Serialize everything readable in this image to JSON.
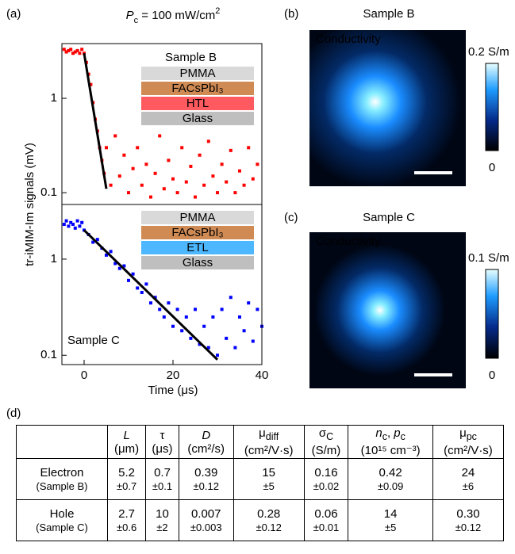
{
  "chart_data": [
    {
      "type": "scatter",
      "panel_label": "(a)",
      "title": [
        {
          "text": "P",
          "style": "italic"
        },
        {
          "text": "c",
          "style": "sub"
        },
        {
          "text": " = 100 mW/cm"
        },
        {
          "text": "2",
          "style": "sup"
        }
      ],
      "ylabel": "tr-iMIM-Im signals (mV)",
      "yscale": "log",
      "xlim": [
        -5,
        40
      ],
      "ylim": [
        0.075,
        3.8
      ],
      "yticks": [
        0.1,
        1
      ],
      "series": [
        {
          "color": "#ff0000",
          "mode": "markers",
          "x": [
            -4.5,
            -4,
            -3.5,
            -3,
            -2.5,
            -2,
            -1.5,
            -1,
            -0.5,
            0,
            0.5,
            1,
            1.5,
            2,
            2.5,
            3,
            3.5,
            4,
            4.5,
            5,
            6,
            7,
            8,
            9,
            10,
            11,
            12,
            13,
            14,
            15,
            16,
            17,
            18,
            19,
            20,
            21,
            22,
            23,
            24,
            25,
            26,
            27,
            28,
            29,
            30,
            31,
            32,
            33,
            34,
            35,
            36,
            37,
            38,
            39
          ],
          "values": [
            3.3,
            3.1,
            3.2,
            3.3,
            3.0,
            3.1,
            3.2,
            3.0,
            3.3,
            3.0,
            2.4,
            1.8,
            1.4,
            0.9,
            0.6,
            0.45,
            0.3,
            0.22,
            0.16,
            0.3,
            0.12,
            0.4,
            0.15,
            0.25,
            0.1,
            0.18,
            0.3,
            0.12,
            0.2,
            0.09,
            0.16,
            0.4,
            0.11,
            0.22,
            0.14,
            0.1,
            0.3,
            0.13,
            0.19,
            0.09,
            0.25,
            0.12,
            0.35,
            0.15,
            0.1,
            0.2,
            0.13,
            0.28,
            0.1,
            0.17,
            0.12,
            0.3,
            0.14,
            0.2
          ]
        },
        {
          "color": "#000000",
          "mode": "line",
          "x": [
            0,
            5
          ],
          "values": [
            3.0,
            0.11
          ]
        }
      ],
      "annotation": {
        "text": "Sample B",
        "color": "#ff0000"
      },
      "layers": [
        {
          "label": "PMMA",
          "color": "#d9d9d9"
        },
        {
          "label": "FACsPbI₃",
          "color": "#d08b55"
        },
        {
          "label": "HTL",
          "color": "#ff5a5f"
        },
        {
          "label": "Glass",
          "color": "#bfbfbf"
        }
      ]
    },
    {
      "type": "scatter",
      "xlabel": "Time (μs)",
      "yscale": "log",
      "xlim": [
        -5,
        40
      ],
      "ylim": [
        0.08,
        3.7
      ],
      "yticks": [
        0.1,
        1
      ],
      "xticks": [
        0,
        20,
        40
      ],
      "series": [
        {
          "color": "#0000ff",
          "mode": "markers",
          "x": [
            -4.5,
            -4,
            -3.5,
            -3,
            -2.5,
            -2,
            -1.5,
            -1,
            -0.5,
            0,
            1,
            2,
            3,
            4,
            5,
            6,
            7,
            8,
            9,
            10,
            11,
            12,
            13,
            14,
            15,
            16,
            17,
            18,
            19,
            20,
            21,
            22,
            23,
            24,
            25,
            26,
            27,
            28,
            29,
            30,
            31,
            32,
            33,
            34,
            35,
            36,
            37,
            38,
            39,
            40
          ],
          "values": [
            2.3,
            2.5,
            2.2,
            2.4,
            2.3,
            2.1,
            2.5,
            2.2,
            2.4,
            2.0,
            1.8,
            1.5,
            1.6,
            1.3,
            1.1,
            1.2,
            0.9,
            0.8,
            0.85,
            0.6,
            0.7,
            0.5,
            0.45,
            0.55,
            0.35,
            0.4,
            0.3,
            0.25,
            0.35,
            0.2,
            0.3,
            0.18,
            0.25,
            0.15,
            0.3,
            0.13,
            0.2,
            0.12,
            0.25,
            0.1,
            0.3,
            0.15,
            0.4,
            0.12,
            0.25,
            0.18,
            0.35,
            0.14,
            0.3,
            0.2
          ]
        },
        {
          "color": "#000000",
          "mode": "line",
          "x": [
            0,
            30
          ],
          "values": [
            2.0,
            0.09
          ]
        }
      ],
      "annotation": {
        "text": "Sample C",
        "color": "#0000ff"
      },
      "layers": [
        {
          "label": "PMMA",
          "color": "#d9d9d9"
        },
        {
          "label": "FACsPbI₃",
          "color": "#d08b55"
        },
        {
          "label": "ETL",
          "color": "#4db8ff"
        },
        {
          "label": "Glass",
          "color": "#bfbfbf"
        }
      ]
    }
  ],
  "images": [
    {
      "panel_label": "(b)",
      "title": "Sample B",
      "title_color": "#ff0000",
      "caption": "Conductivity",
      "colorbar": {
        "max_label": "0.2 S/m",
        "min_label": "0"
      }
    },
    {
      "panel_label": "(c)",
      "title": "Sample C",
      "title_color": "#0000dd",
      "caption": "Conductivity",
      "colorbar": {
        "max_label": "0.1 S/m",
        "min_label": "0"
      }
    }
  ],
  "table": {
    "panel_label": "(d)",
    "header": [
      {
        "parts": [
          {
            "text": "L",
            "style": "italic"
          }
        ],
        "unit": "(μm)"
      },
      {
        "parts": [
          {
            "text": "τ"
          }
        ],
        "unit": "(μs)"
      },
      {
        "parts": [
          {
            "text": "D",
            "style": "italic"
          }
        ],
        "unit": "(cm²/s)"
      },
      {
        "parts": [
          {
            "text": "μ"
          },
          {
            "text": "diff",
            "style": "sub"
          }
        ],
        "unit": "(cm²/V·s)"
      },
      {
        "parts": [
          {
            "text": "σ"
          },
          {
            "text": "C",
            "style": "sub"
          }
        ],
        "unit": "(S/m)"
      },
      {
        "parts": [
          {
            "text": "n",
            "style": "italic"
          },
          {
            "text": "c",
            "style": "sub"
          },
          {
            "text": ", "
          },
          {
            "text": "p",
            "style": "italic"
          },
          {
            "text": "c",
            "style": "sub"
          }
        ],
        "unit": "(10¹⁵ cm⁻³)"
      },
      {
        "parts": [
          {
            "text": "μ"
          },
          {
            "text": "pc",
            "style": "sub"
          }
        ],
        "unit": "(cm²/V·s)"
      }
    ],
    "rows": [
      {
        "name": "Electron",
        "sample": "(Sample B)",
        "cells": [
          {
            "value": "5.2",
            "error": "±0.7"
          },
          {
            "value": "0.7",
            "error": "±0.1"
          },
          {
            "value": "0.39",
            "error": "±0.12"
          },
          {
            "value": "15",
            "error": "±5"
          },
          {
            "value": "0.16",
            "error": "±0.02"
          },
          {
            "value": "0.42",
            "error": "±0.09"
          },
          {
            "value": "24",
            "error": "±6"
          }
        ]
      },
      {
        "name": "Hole",
        "sample": "(Sample C)",
        "cells": [
          {
            "value": "2.7",
            "error": "±0.6"
          },
          {
            "value": "10",
            "error": "±2"
          },
          {
            "value": "0.007",
            "error": "±0.003"
          },
          {
            "value": "0.28",
            "error": "±0.12"
          },
          {
            "value": "0.06",
            "error": "±0.01"
          },
          {
            "value": "14",
            "error": "±5"
          },
          {
            "value": "0.30",
            "error": "±0.12"
          }
        ]
      }
    ]
  }
}
